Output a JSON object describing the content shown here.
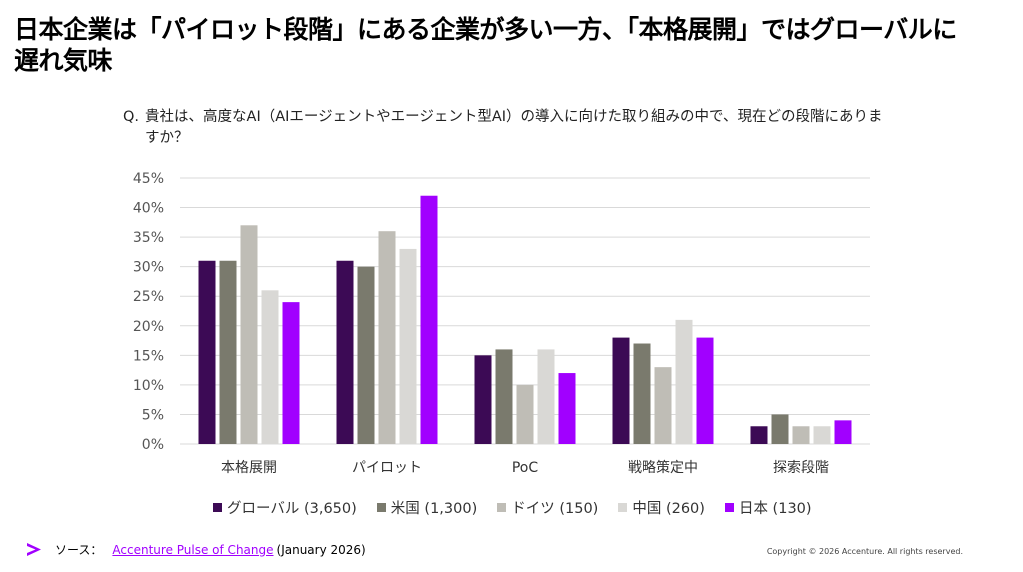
{
  "headline": "日本企業は「パイロット段階」にある企業が多い一方、「本格展開」ではグローバルに遅れ気味",
  "question": {
    "marker": "Q.",
    "text": "貴社は、高度なAI（AIエージェントやエージェント型AI）の導入に向けた取り組みの中で、現在どの段階にありますか？"
  },
  "chart_data": {
    "type": "bar",
    "title": "",
    "xlabel": "",
    "ylabel": "",
    "categories": [
      "本格展開",
      "パイロット",
      "PoC",
      "戦略策定中",
      "探索段階"
    ],
    "series": [
      {
        "name": "グローバル (3,650)",
        "color": "#3c0a55",
        "values": [
          31,
          31,
          15,
          18,
          3
        ]
      },
      {
        "name": "米国 (1,300)",
        "color": "#7a7a6d",
        "values": [
          31,
          30,
          16,
          17,
          5
        ]
      },
      {
        "name": "ドイツ (150)",
        "color": "#bfbdb6",
        "values": [
          37,
          36,
          10,
          13,
          3
        ]
      },
      {
        "name": "中国 (260)",
        "color": "#d9d8d5",
        "values": [
          26,
          33,
          16,
          21,
          3
        ]
      },
      {
        "name": "日本 (130)",
        "color": "#a100ff",
        "values": [
          24,
          42,
          12,
          18,
          4
        ]
      }
    ],
    "ylim": [
      0,
      45
    ],
    "yticks": [
      "0%",
      "5%",
      "10%",
      "15%",
      "20%",
      "25%",
      "30%",
      "35%",
      "40%",
      "45%"
    ],
    "grid": true,
    "legend": "bottom"
  },
  "footer": {
    "source_label": "ソース：",
    "source_link": "Accenture Pulse of Change",
    "source_date": "(January 2026)",
    "copyright": "Copyright © 2026 Accenture. All rights reserved."
  }
}
